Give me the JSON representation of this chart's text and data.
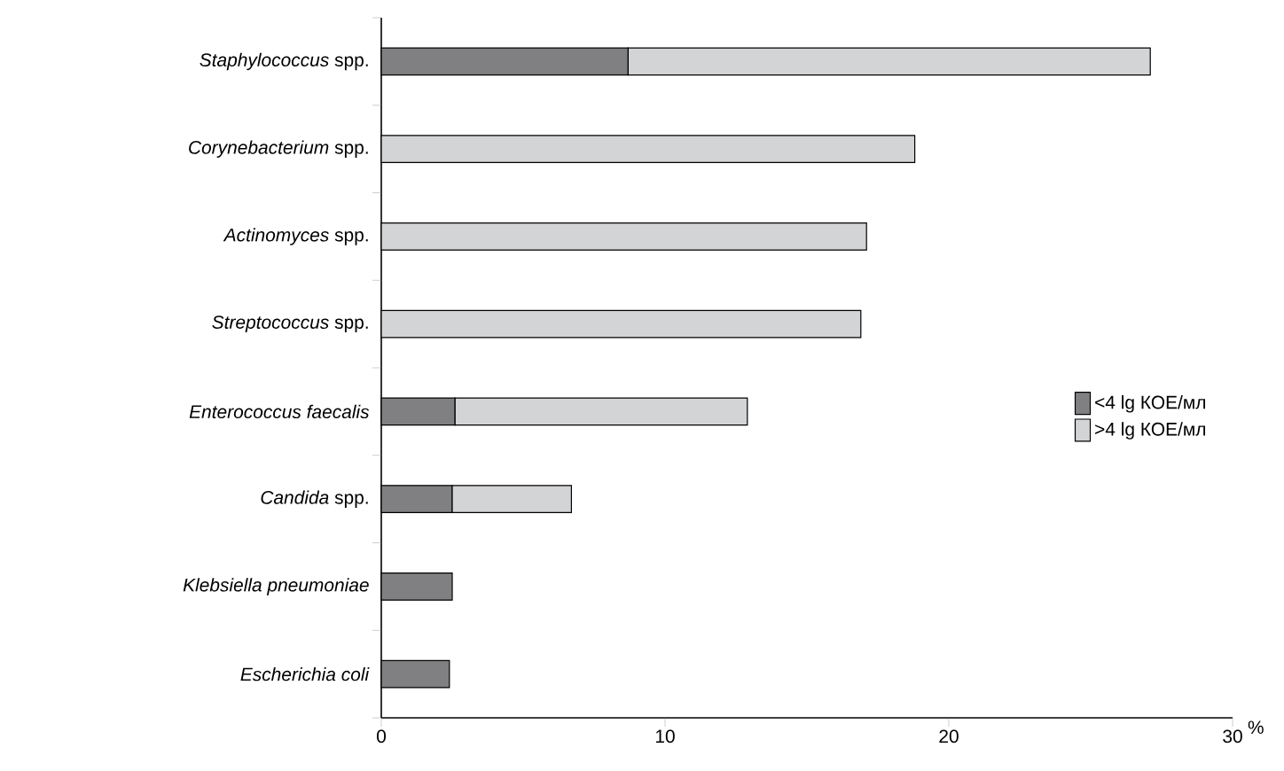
{
  "chart_data": {
    "type": "bar",
    "orientation": "horizontal",
    "stacked": true,
    "categories": [
      "*Staphylococcus* spp.",
      "*Corynebacterium* spp.",
      "*Actinomyces* spp.",
      "*Streptococcus* spp.",
      "*Enterococcus faecalis*",
      "*Candida* spp.",
      "*Klebsiella pneumoniae*",
      "*Escherichia coli*"
    ],
    "series": [
      {
        "name": "<4 lg КОЕ/мл",
        "color": "#808083",
        "values": [
          8.7,
          null,
          null,
          null,
          2.6,
          2.5,
          2.5,
          2.4
        ]
      },
      {
        "name": ">4 lg КОЕ/мл",
        "color": "#d3d4d6",
        "values": [
          18.4,
          18.8,
          17.1,
          16.9,
          10.3,
          4.2,
          null,
          null
        ]
      }
    ],
    "xlabel": "%",
    "xlim": [
      0,
      30
    ],
    "xticks": [
      0,
      10,
      20,
      30
    ],
    "legend": "right",
    "grid": false
  }
}
